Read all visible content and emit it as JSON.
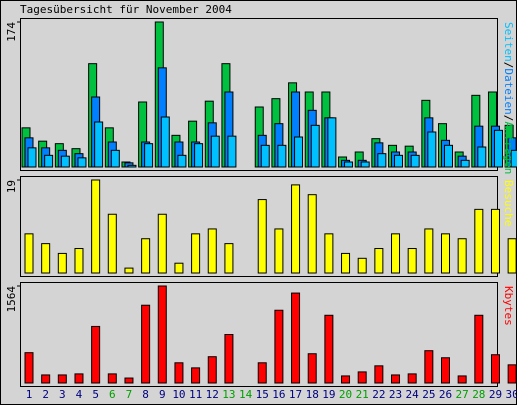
{
  "title": "Tagesübersicht für November 2004",
  "chart_data": [
    {
      "type": "bar",
      "ylim": [
        0,
        174
      ],
      "yticks": [
        174
      ],
      "label_separator": "/",
      "series": [
        {
          "name": "Anfragen",
          "color": "#00c040",
          "values": [
            47,
            31,
            28,
            22,
            124,
            47,
            6,
            78,
            174,
            38,
            55,
            79,
            124,
            0,
            72,
            82,
            101,
            90,
            90,
            12,
            18,
            34,
            26,
            25,
            80,
            52,
            18,
            86,
            90,
            50
          ]
        },
        {
          "name": "Dateien",
          "color": "#0080ff",
          "values": [
            35,
            23,
            20,
            16,
            84,
            30,
            5,
            30,
            119,
            30,
            30,
            53,
            90,
            0,
            38,
            52,
            90,
            68,
            59,
            8,
            8,
            29,
            18,
            18,
            59,
            32,
            13,
            49,
            49,
            35
          ]
        },
        {
          "name": "Seiten",
          "color": "#00c0ff",
          "values": [
            23,
            14,
            13,
            11,
            54,
            20,
            2,
            28,
            60,
            14,
            28,
            37,
            37,
            0,
            26,
            26,
            36,
            50,
            59,
            6,
            6,
            16,
            14,
            14,
            42,
            26,
            8,
            24,
            44,
            20
          ]
        }
      ]
    },
    {
      "type": "bar",
      "ylim": [
        0,
        19
      ],
      "yticks": [
        19
      ],
      "series": [
        {
          "name": "Besuche",
          "color": "#ffff00",
          "values": [
            8,
            6,
            4,
            5,
            19,
            12,
            1,
            7,
            12,
            2,
            8,
            9,
            6,
            0,
            15,
            9,
            18,
            16,
            8,
            4,
            3,
            5,
            8,
            5,
            9,
            8,
            7,
            13,
            13,
            7
          ]
        }
      ]
    },
    {
      "type": "bar",
      "ylim": [
        0,
        1564
      ],
      "yticks": [
        1564
      ],
      "series": [
        {
          "name": "Kbytes",
          "color": "#ff0000",
          "values": [
            489,
            130,
            130,
            147,
            912,
            147,
            80,
            1254,
            1564,
            326,
            244,
            424,
            782,
            0,
            326,
            1173,
            1450,
            472,
            1092,
            114,
            179,
            277,
            130,
            147,
            521,
            407,
            114,
            1092,
            456,
            293
          ]
        }
      ],
      "categories": [
        "1",
        "2",
        "3",
        "4",
        "5",
        "6",
        "7",
        "8",
        "9",
        "10",
        "11",
        "12",
        "13",
        "14",
        "15",
        "16",
        "17",
        "18",
        "19",
        "20",
        "21",
        "22",
        "23",
        "24",
        "25",
        "26",
        "27",
        "28",
        "29",
        "30"
      ],
      "label_colors": [
        "#000080",
        "#000080",
        "#000080",
        "#000080",
        "#000080",
        "#00a000",
        "#00a000",
        "#000080",
        "#000080",
        "#000080",
        "#000080",
        "#000080",
        "#00a000",
        "#00a000",
        "#000080",
        "#000080",
        "#000080",
        "#000080",
        "#000080",
        "#00a000",
        "#00a000",
        "#000080",
        "#000080",
        "#000080",
        "#000080",
        "#000080",
        "#00a000",
        "#00a000",
        "#000080",
        "#000080"
      ]
    }
  ]
}
